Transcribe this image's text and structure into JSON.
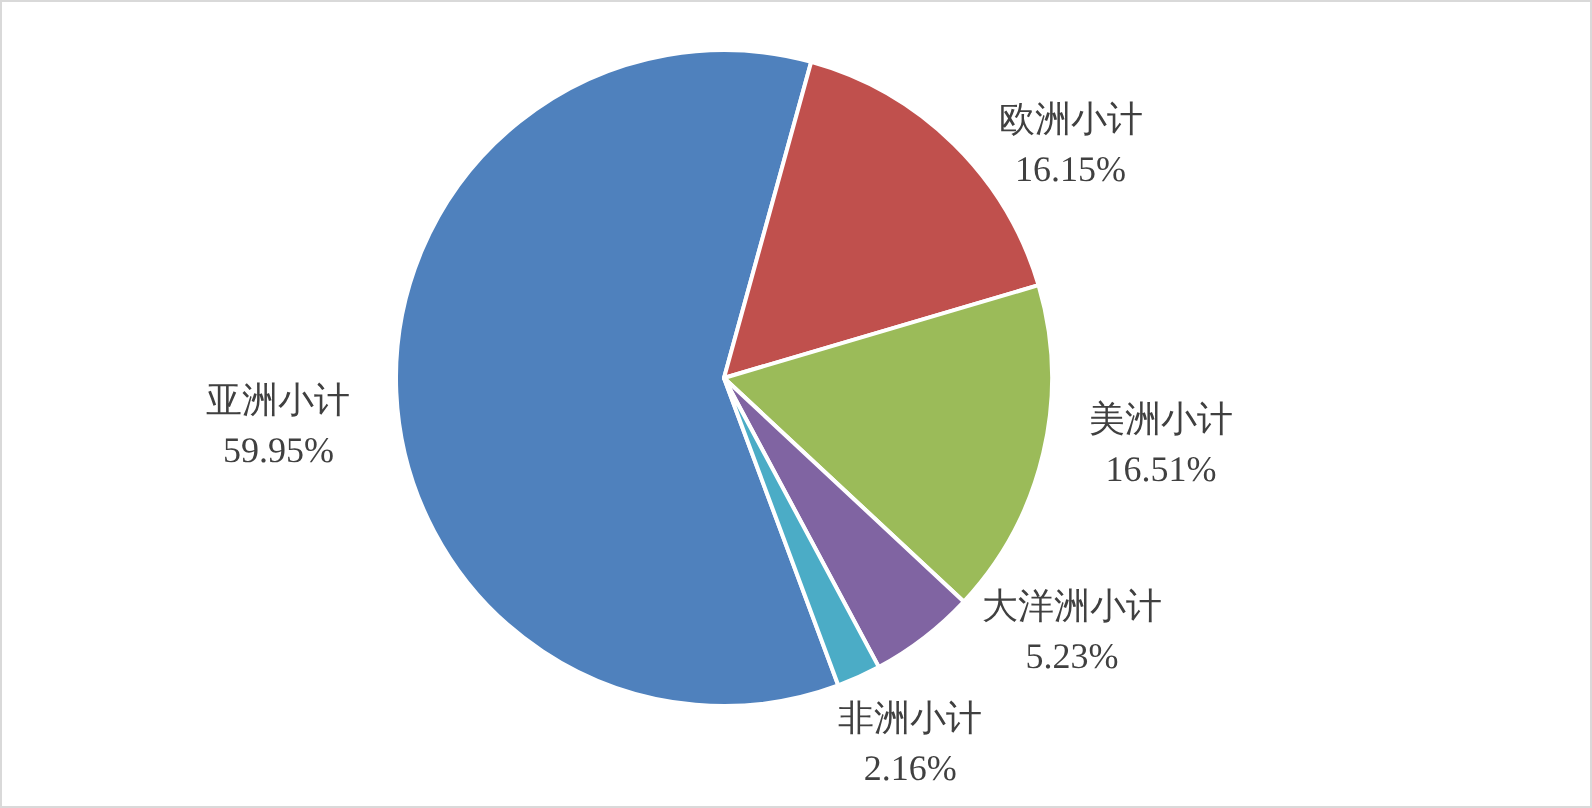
{
  "chart_data": {
    "type": "pie",
    "categories": [
      "亚洲小计",
      "欧洲小计",
      "美洲小计",
      "大洋洲小计",
      "非洲小计"
    ],
    "values": [
      59.95,
      16.15,
      16.51,
      5.23,
      2.16
    ],
    "colors": [
      "#4f81bd",
      "#c0504d",
      "#9bbb59",
      "#8064a2",
      "#4bacc6"
    ],
    "value_labels": [
      "59.95%",
      "16.15%",
      "16.51%",
      "5.23%",
      "2.16%"
    ]
  }
}
